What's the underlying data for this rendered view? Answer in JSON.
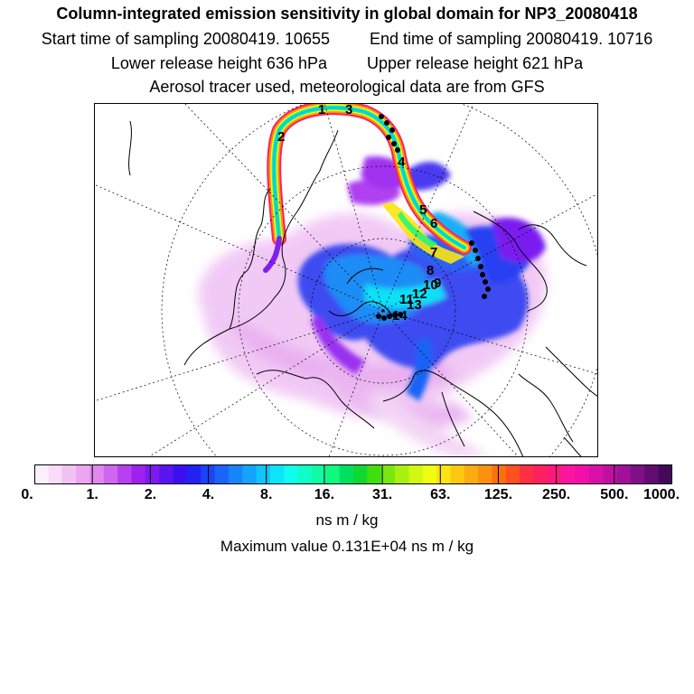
{
  "header": {
    "title": "Column-integrated emission sensitivity in global domain for NP3_20080418",
    "start_time": "Start time of sampling 20080419. 10655",
    "end_time": "End time of sampling 20080419. 10716",
    "lower_height": "Lower release height  636 hPa",
    "upper_height": "Upper release height  621 hPa",
    "tracer_info": "Aerosol tracer used, meteorological data are from GFS"
  },
  "map": {
    "trajectory_labels": [
      "1",
      "2",
      "3",
      "4",
      "5",
      "6",
      "7",
      "8",
      "9",
      "10",
      "11",
      "12",
      "13",
      "14"
    ]
  },
  "colorbar": {
    "tick_labels": [
      "0.",
      "1.",
      "2.",
      "4.",
      "8.",
      "16.",
      "31.",
      "63.",
      "125.",
      "250.",
      "500.",
      "1000."
    ],
    "colors": [
      "#fdf0fd",
      "#f8dcf8",
      "#f2c2f2",
      "#eba6ef",
      "#e088ef",
      "#cf66ef",
      "#b840ee",
      "#a020ef",
      "#7c1af0",
      "#5a14f0",
      "#3a10f0",
      "#2222f4",
      "#1c44f6",
      "#1a64f8",
      "#1884fa",
      "#14a4fc",
      "#10c4fc",
      "#0ce4fc",
      "#10fcec",
      "#10fcc8",
      "#10fca4",
      "#10f880",
      "#00e060",
      "#10d830",
      "#40e010",
      "#78e810",
      "#a8f010",
      "#d0f810",
      "#f0fc10",
      "#fce410",
      "#fcc810",
      "#fcac10",
      "#fc9010",
      "#fc7010",
      "#fc5020",
      "#fc3040",
      "#fc2060",
      "#fc1880",
      "#fc14a0",
      "#f010a8",
      "#d810a8",
      "#c010a0",
      "#a01098",
      "#801088",
      "#600c70",
      "#440858"
    ],
    "units": "ns m / kg",
    "max_value": "Maximum value  0.131E+04 ns m / kg"
  }
}
